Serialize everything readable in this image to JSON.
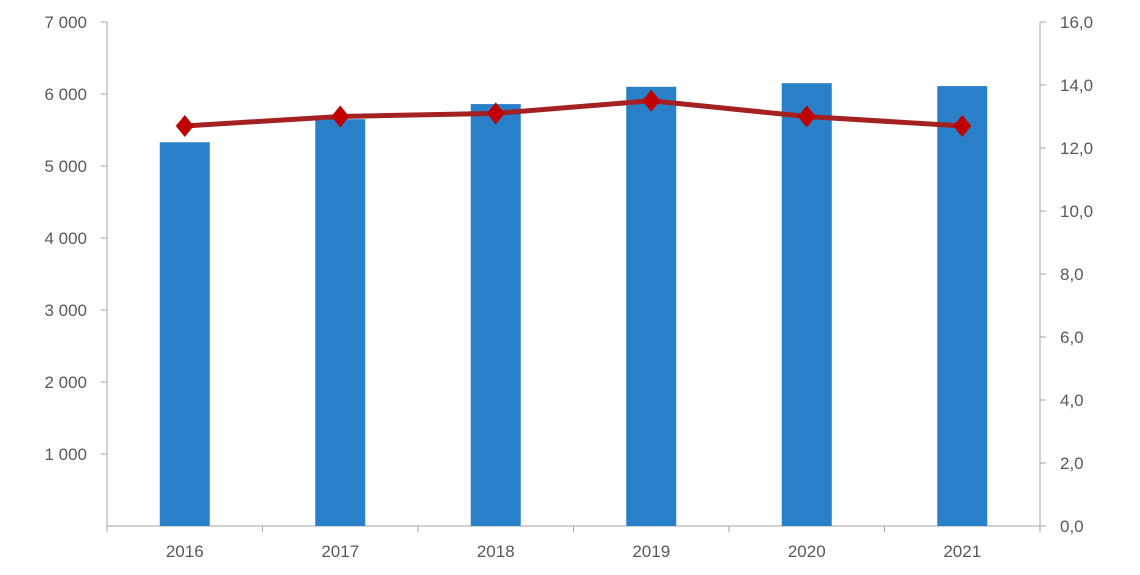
{
  "chart_data": {
    "type": "bar+line",
    "categories": [
      "2016",
      "2017",
      "2018",
      "2019",
      "2020",
      "2021"
    ],
    "series": [
      {
        "type": "bar",
        "axis": "left",
        "color": "#2980c9",
        "values": [
          5330,
          5650,
          5860,
          6100,
          6150,
          6110
        ]
      },
      {
        "type": "line",
        "axis": "right",
        "color": "#a52020",
        "marker_color": "#c00000",
        "marker": "diamond",
        "values": [
          12.7,
          13.0,
          13.1,
          13.5,
          13.0,
          12.7
        ]
      }
    ],
    "y_left": {
      "range": [
        0,
        7000
      ],
      "ticks": [
        "1 000",
        "2 000",
        "3 000",
        "4 000",
        "5 000",
        "6 000",
        "7 000"
      ],
      "tick_values": [
        1000,
        2000,
        3000,
        4000,
        5000,
        6000,
        7000
      ]
    },
    "y_right": {
      "range": [
        0,
        16
      ],
      "ticks": [
        "0,0",
        "2,0",
        "4,0",
        "6,0",
        "8,0",
        "10,0",
        "12,0",
        "14,0",
        "16,0"
      ],
      "tick_values": [
        0,
        2,
        4,
        6,
        8,
        10,
        12,
        14,
        16
      ]
    },
    "grid": false,
    "legend": "none"
  }
}
